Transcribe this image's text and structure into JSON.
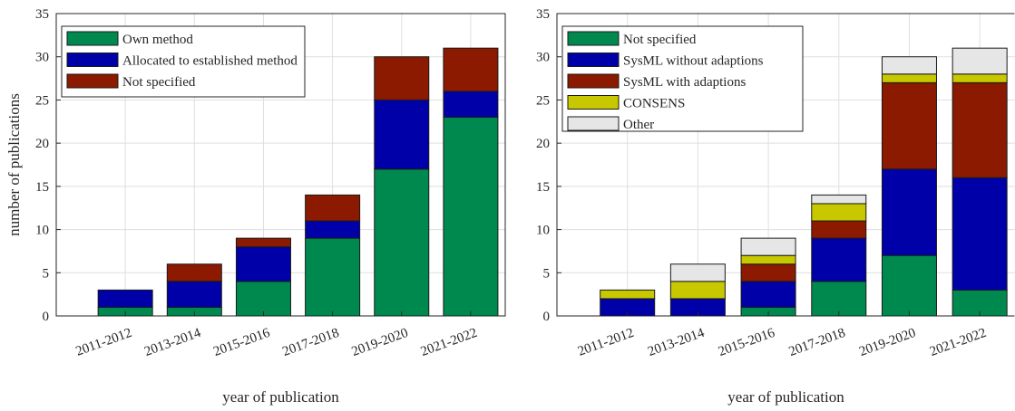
{
  "colors": {
    "green": "#00894f",
    "blue": "#0000a8",
    "red": "#8b1a00",
    "yellow": "#c8c800",
    "gray": "#e6e6e6"
  },
  "chart_data": [
    {
      "type": "bar",
      "stacked": true,
      "categories": [
        "2011-2012",
        "2013-2014",
        "2015-2016",
        "2017-2018",
        "2019-2020",
        "2021-2022"
      ],
      "series": [
        {
          "name": "Own method",
          "color": "#00894f",
          "values": [
            1,
            1,
            4,
            9,
            17,
            23
          ]
        },
        {
          "name": "Allocated to established method",
          "color": "#0000a8",
          "values": [
            2,
            3,
            4,
            2,
            8,
            3
          ]
        },
        {
          "name": "Not specified",
          "color": "#8b1a00",
          "values": [
            0,
            2,
            1,
            3,
            5,
            5
          ]
        }
      ],
      "title": "",
      "xlabel": "year of publication",
      "ylabel": "number of publications",
      "ylim": [
        0,
        35
      ],
      "yticks": [
        "0",
        "5",
        "10",
        "15",
        "20",
        "25",
        "30",
        "35"
      ],
      "grid": true,
      "legend_position": "top-left"
    },
    {
      "type": "bar",
      "stacked": true,
      "categories": [
        "2011-2012",
        "2013-2014",
        "2015-2016",
        "2017-2018",
        "2019-2020",
        "2021-2022"
      ],
      "series": [
        {
          "name": "Not specified",
          "color": "#00894f",
          "values": [
            0,
            0,
            1,
            4,
            7,
            3
          ]
        },
        {
          "name": "SysML without adaptions",
          "color": "#0000a8",
          "values": [
            2,
            2,
            3,
            5,
            10,
            13
          ]
        },
        {
          "name": "SysML with adaptions",
          "color": "#8b1a00",
          "values": [
            0,
            0,
            2,
            2,
            10,
            11
          ]
        },
        {
          "name": "CONSENS",
          "color": "#c8c800",
          "values": [
            1,
            2,
            1,
            2,
            1,
            1
          ]
        },
        {
          "name": "Other",
          "color": "#e6e6e6",
          "values": [
            0,
            2,
            2,
            1,
            2,
            3
          ]
        }
      ],
      "title": "",
      "xlabel": "year of publication",
      "ylabel": "",
      "ylim": [
        0,
        35
      ],
      "yticks": [
        "0",
        "5",
        "10",
        "15",
        "20",
        "25",
        "30",
        "35"
      ],
      "grid": true,
      "legend_position": "top-left"
    }
  ]
}
